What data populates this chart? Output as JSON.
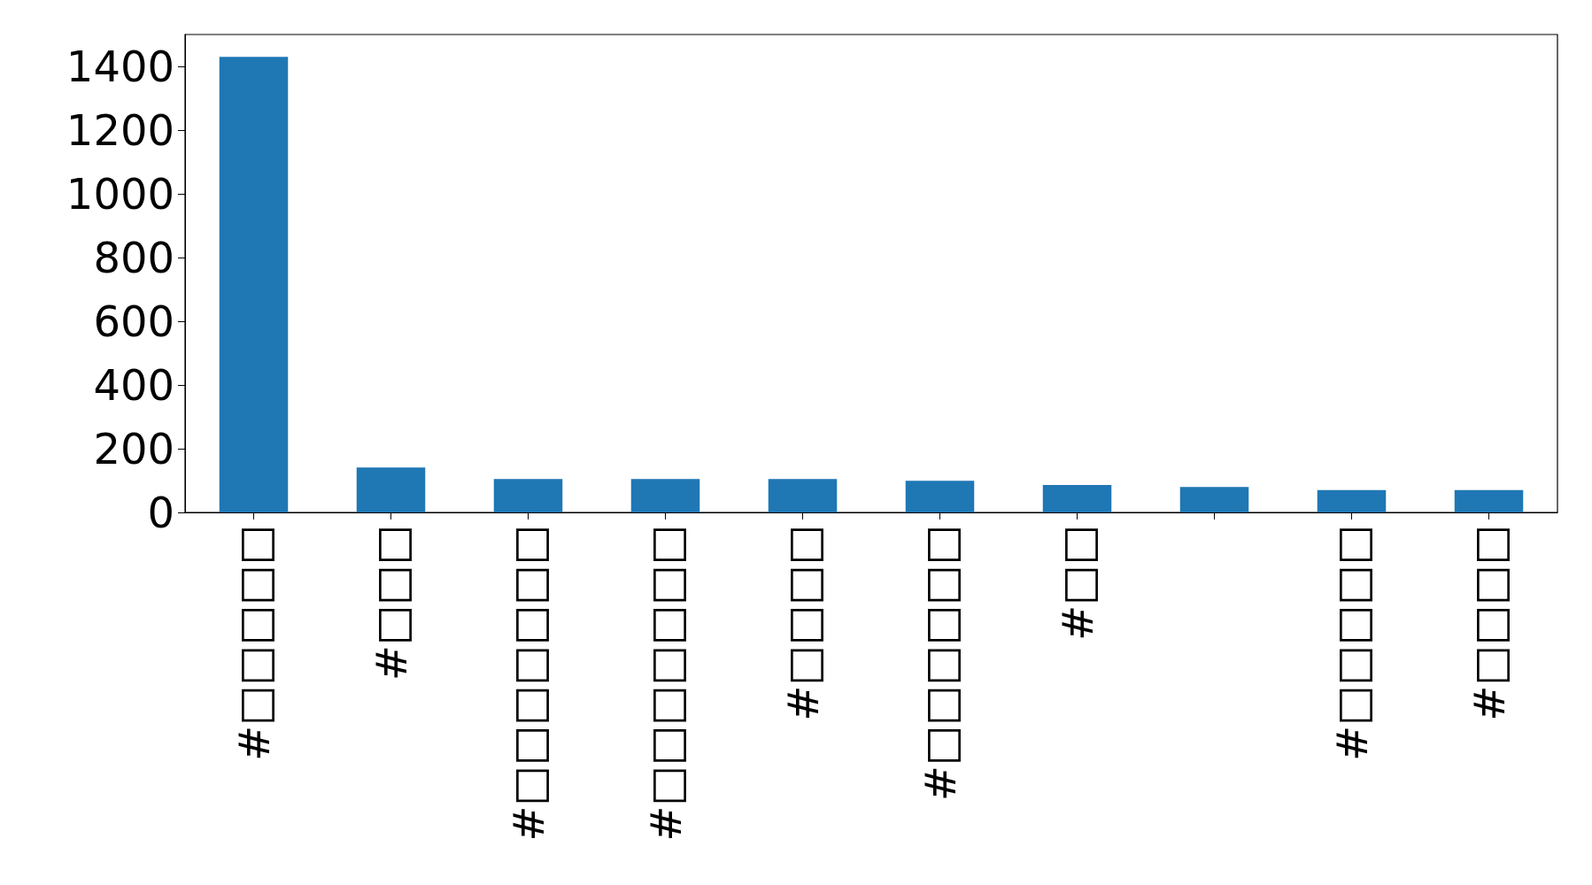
{
  "chart_data": {
    "type": "bar",
    "categories": [
      "#□□□□□",
      "#□□□",
      "#□□□□□□□",
      "#□□□□□□□",
      "#□□□□",
      "#□□□□□□",
      "#□□",
      null,
      "#□□□□□",
      "#□□□□"
    ],
    "values": [
      1430,
      141,
      105,
      105,
      105,
      99,
      86,
      80,
      70,
      70
    ],
    "color": "#1f77b4",
    "ylim": [
      0,
      1500
    ],
    "yticks": [
      0,
      200,
      400,
      600,
      800,
      1000,
      1200,
      1400
    ],
    "grid": false
  }
}
